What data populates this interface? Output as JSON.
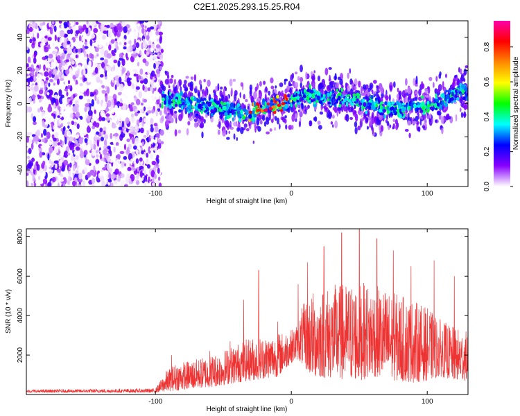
{
  "title": "C2E1.2025.293.15.25.R04",
  "colors": {
    "snr_line": "#ee3333",
    "axis": "#000000",
    "background": "#ffffff"
  },
  "chart_data": [
    {
      "type": "heatmap",
      "name": "spectrogram",
      "xlabel": "Height of straight line (km)",
      "ylabel": "Frequency (Hz)",
      "xlim": [
        -195,
        130
      ],
      "ylim": [
        -50,
        50
      ],
      "x_ticks": [
        -100,
        0,
        100
      ],
      "y_ticks": [
        -40,
        -20,
        0,
        20,
        40
      ],
      "noise_region_x": [
        -195,
        -95
      ],
      "ridge": {
        "x": [
          -95,
          -85,
          -70,
          -55,
          -40,
          -30,
          -22,
          -15,
          -8,
          0,
          10,
          20,
          35,
          50,
          60,
          70,
          80,
          90,
          100,
          110,
          120,
          130
        ],
        "freq": [
          2,
          1,
          -1,
          -3,
          -5,
          -6,
          -3,
          -2,
          0,
          2,
          5,
          4,
          4,
          1,
          -1,
          -3,
          -3,
          -2,
          -2,
          1,
          6,
          8
        ]
      },
      "colorbar": {
        "label": "Normalized spectral amplitude",
        "range": [
          0.0,
          0.95
        ],
        "ticks": [
          "0.0",
          "0.2",
          "0.4",
          "0.6",
          "0.8"
        ],
        "tick_values": [
          0.0,
          0.2,
          0.4,
          0.6,
          0.8
        ],
        "colors": [
          "#ffffff",
          "#8800ff",
          "#0000ff",
          "#00ffff",
          "#00ff00",
          "#ffff00",
          "#ff8800",
          "#ff0000",
          "#ff00aa"
        ]
      }
    },
    {
      "type": "line",
      "name": "snr",
      "xlabel": "Height of straight line (km)",
      "ylabel": "SNR (10 * v/v)",
      "xlim": [
        -195,
        130
      ],
      "ylim": [
        0,
        8400
      ],
      "x_ticks": [
        -100,
        0,
        100
      ],
      "y_ticks": [
        2000,
        4000,
        6000,
        8000
      ],
      "envelope": {
        "x": [
          -195,
          -100,
          -92,
          -85,
          -70,
          -55,
          -40,
          -30,
          -20,
          -10,
          0,
          5,
          8,
          15,
          30,
          50,
          60,
          75,
          90,
          100,
          110,
          120,
          130
        ],
        "base": [
          100,
          100,
          150,
          200,
          300,
          400,
          600,
          700,
          800,
          900,
          1600,
          1800,
          1500,
          900,
          800,
          700,
          900,
          700,
          600,
          700,
          900,
          700,
          700
        ],
        "peak": [
          250,
          300,
          1200,
          1600,
          1800,
          2100,
          2600,
          2900,
          3000,
          3100,
          3300,
          3600,
          4500,
          5200,
          5600,
          5700,
          5600,
          5200,
          4800,
          4400,
          3800,
          3400,
          3200
        ]
      },
      "spikes": [
        {
          "x": -88,
          "y": 2000
        },
        {
          "x": -60,
          "y": 2200
        },
        {
          "x": -45,
          "y": 2700
        },
        {
          "x": -35,
          "y": 4800
        },
        {
          "x": -24,
          "y": 6300
        },
        {
          "x": -10,
          "y": 3700
        },
        {
          "x": 5,
          "y": 5600
        },
        {
          "x": 12,
          "y": 6700
        },
        {
          "x": 24,
          "y": 7500
        },
        {
          "x": 37,
          "y": 8200
        },
        {
          "x": 50,
          "y": 8400
        },
        {
          "x": 63,
          "y": 7900
        },
        {
          "x": 75,
          "y": 7300
        },
        {
          "x": 88,
          "y": 6500
        },
        {
          "x": 105,
          "y": 6800
        },
        {
          "x": 120,
          "y": 6000
        }
      ]
    }
  ]
}
